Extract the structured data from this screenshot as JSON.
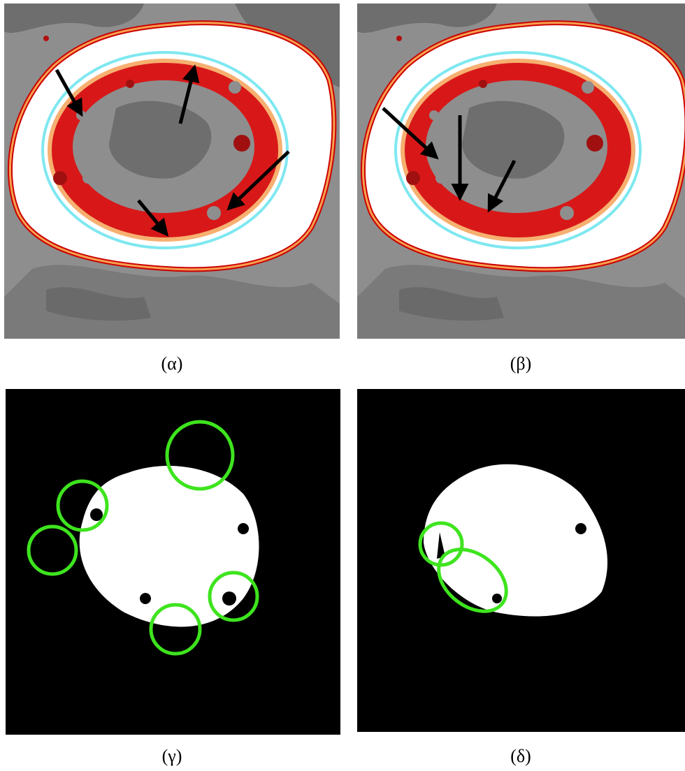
{
  "panels": [
    {
      "label": "(α)"
    },
    {
      "label": "(β)"
    },
    {
      "label": "(γ)"
    },
    {
      "label": "(δ)"
    }
  ]
}
